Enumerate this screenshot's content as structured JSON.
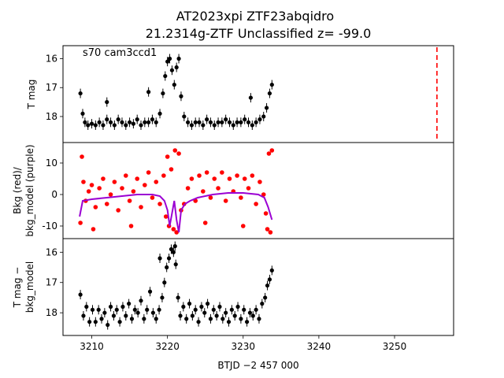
{
  "chart_data": {
    "type": "scatter",
    "title_line1": "AT2023xpi  ZTF23abqidro",
    "title_line2": "21.2314g-ZTF Unclassified z= -99.0",
    "annotation": "s70 cam3ccd1",
    "xlabel": "BTJD −2 457 000",
    "xlim": [
      3206.2,
      3257.8
    ],
    "xticks": [
      3210,
      3220,
      3230,
      3240,
      3250
    ],
    "panels": [
      {
        "name": "tmag",
        "ylabel": [
          "T mag"
        ],
        "ylim": [
          18.9,
          15.55
        ],
        "yticks": [
          16,
          17,
          18
        ],
        "series": [
          {
            "name": "",
            "kind": "errorbar",
            "color": "#000000",
            "points": [
              [
                3208.5,
                17.2
              ],
              [
                3208.8,
                17.9
              ],
              [
                3209.1,
                18.2
              ],
              [
                3209.5,
                18.3
              ],
              [
                3210.0,
                18.25
              ],
              [
                3210.5,
                18.3
              ],
              [
                3211.0,
                18.2
              ],
              [
                3211.5,
                18.3
              ],
              [
                3212.0,
                18.1
              ],
              [
                3212.5,
                18.2
              ],
              [
                3213.0,
                18.3
              ],
              [
                3213.5,
                18.1
              ],
              [
                3214.0,
                18.2
              ],
              [
                3214.5,
                18.3
              ],
              [
                3215.0,
                18.2
              ],
              [
                3215.5,
                18.25
              ],
              [
                3216.0,
                18.1
              ],
              [
                3216.5,
                18.3
              ],
              [
                3217.0,
                18.2
              ],
              [
                3217.5,
                18.2
              ],
              [
                3218.0,
                18.1
              ],
              [
                3218.5,
                18.2
              ],
              [
                3219.0,
                17.9
              ],
              [
                3219.4,
                17.2
              ],
              [
                3219.7,
                16.6
              ],
              [
                3220.0,
                16.1
              ],
              [
                3220.3,
                16.0
              ],
              [
                3220.6,
                16.4
              ],
              [
                3220.9,
                16.9
              ],
              [
                3221.2,
                16.3
              ],
              [
                3221.5,
                16.0
              ],
              [
                3221.8,
                17.3
              ],
              [
                3222.2,
                18.0
              ],
              [
                3222.7,
                18.2
              ],
              [
                3223.2,
                18.3
              ],
              [
                3223.7,
                18.2
              ],
              [
                3224.2,
                18.2
              ],
              [
                3224.7,
                18.3
              ],
              [
                3225.2,
                18.1
              ],
              [
                3225.7,
                18.2
              ],
              [
                3226.2,
                18.3
              ],
              [
                3226.7,
                18.2
              ],
              [
                3227.2,
                18.2
              ],
              [
                3227.7,
                18.1
              ],
              [
                3228.2,
                18.2
              ],
              [
                3228.7,
                18.3
              ],
              [
                3229.2,
                18.2
              ],
              [
                3229.7,
                18.2
              ],
              [
                3230.2,
                18.1
              ],
              [
                3230.7,
                18.2
              ],
              [
                3231.2,
                18.3
              ],
              [
                3231.7,
                18.2
              ],
              [
                3232.2,
                18.1
              ],
              [
                3232.7,
                18.0
              ],
              [
                3233.1,
                17.7
              ],
              [
                3233.5,
                17.2
              ],
              [
                3233.8,
                16.9
              ],
              [
                3217.5,
                17.15
              ],
              [
                3212.0,
                17.5
              ],
              [
                3231.0,
                17.35
              ]
            ]
          },
          {
            "name": "",
            "kind": "vline",
            "color": "#ff0000",
            "x": 3255.6
          }
        ]
      },
      {
        "name": "bkg",
        "ylabel": [
          "Bkg (red)/",
          "bkg_model (purple)"
        ],
        "ylim": [
          -14,
          16.5
        ],
        "yticks": [
          -10,
          0,
          10
        ],
        "series": [
          {
            "name": "Bkg",
            "kind": "scatter",
            "color": "#ff0000",
            "points": [
              [
                3208.5,
                -9
              ],
              [
                3208.7,
                12
              ],
              [
                3208.9,
                4
              ],
              [
                3209.2,
                -2
              ],
              [
                3209.6,
                1
              ],
              [
                3210.0,
                3
              ],
              [
                3210.5,
                -4
              ],
              [
                3211.0,
                2
              ],
              [
                3211.5,
                5
              ],
              [
                3212.0,
                -3
              ],
              [
                3212.5,
                0
              ],
              [
                3213.0,
                4
              ],
              [
                3213.5,
                -5
              ],
              [
                3214.0,
                2
              ],
              [
                3214.5,
                6
              ],
              [
                3215.0,
                -2
              ],
              [
                3215.5,
                1
              ],
              [
                3216.0,
                5
              ],
              [
                3216.5,
                -4
              ],
              [
                3217.0,
                3
              ],
              [
                3217.5,
                7
              ],
              [
                3218.0,
                -1
              ],
              [
                3218.5,
                4
              ],
              [
                3219.0,
                -3
              ],
              [
                3219.5,
                6
              ],
              [
                3219.8,
                -7
              ],
              [
                3220.0,
                12
              ],
              [
                3220.2,
                -10
              ],
              [
                3220.5,
                8
              ],
              [
                3220.8,
                -11
              ],
              [
                3221.0,
                14
              ],
              [
                3221.2,
                -12
              ],
              [
                3221.5,
                13
              ],
              [
                3221.8,
                -5
              ],
              [
                3222.2,
                -3
              ],
              [
                3222.7,
                2
              ],
              [
                3223.2,
                5
              ],
              [
                3223.7,
                -2
              ],
              [
                3224.2,
                6
              ],
              [
                3224.7,
                1
              ],
              [
                3225.2,
                7
              ],
              [
                3225.7,
                -1
              ],
              [
                3226.2,
                5
              ],
              [
                3226.7,
                2
              ],
              [
                3227.2,
                7
              ],
              [
                3227.7,
                -2
              ],
              [
                3228.2,
                5
              ],
              [
                3228.7,
                1
              ],
              [
                3229.2,
                6
              ],
              [
                3229.7,
                -1
              ],
              [
                3230.2,
                5
              ],
              [
                3230.7,
                2
              ],
              [
                3231.2,
                6
              ],
              [
                3231.7,
                -3
              ],
              [
                3232.2,
                4
              ],
              [
                3232.7,
                0
              ],
              [
                3233.0,
                -6
              ],
              [
                3233.2,
                -11
              ],
              [
                3233.4,
                13
              ],
              [
                3233.6,
                -12
              ],
              [
                3233.8,
                14
              ],
              [
                3210.2,
                -11
              ],
              [
                3215.2,
                -10
              ],
              [
                3225.0,
                -9
              ],
              [
                3230.0,
                -10
              ]
            ]
          },
          {
            "name": "bkg_model",
            "kind": "line",
            "color": "#9b00d3",
            "points": [
              [
                3208.4,
                -7
              ],
              [
                3208.8,
                -2
              ],
              [
                3210.0,
                -1.5
              ],
              [
                3212.0,
                -1
              ],
              [
                3214.0,
                -0.5
              ],
              [
                3216.0,
                0
              ],
              [
                3218.0,
                0
              ],
              [
                3219.0,
                -0.5
              ],
              [
                3219.6,
                -2
              ],
              [
                3220.0,
                -5
              ],
              [
                3220.3,
                -10
              ],
              [
                3220.6,
                -6
              ],
              [
                3220.9,
                -2
              ],
              [
                3221.2,
                -8
              ],
              [
                3221.5,
                -12
              ],
              [
                3221.8,
                -5
              ],
              [
                3222.3,
                -3
              ],
              [
                3223.0,
                -2
              ],
              [
                3224.0,
                -1
              ],
              [
                3226.0,
                0
              ],
              [
                3228.0,
                0.5
              ],
              [
                3230.0,
                0.5
              ],
              [
                3232.0,
                0
              ],
              [
                3232.8,
                -1
              ],
              [
                3233.3,
                -4
              ],
              [
                3233.8,
                -8
              ]
            ]
          }
        ]
      },
      {
        "name": "diff",
        "ylabel": [
          "T mag −",
          "bkg_model"
        ],
        "ylim": [
          18.75,
          15.55
        ],
        "yticks": [
          16,
          17,
          18
        ],
        "series": [
          {
            "name": "",
            "kind": "errorbar",
            "color": "#000000",
            "points": [
              [
                3208.5,
                17.4
              ],
              [
                3208.9,
                18.1
              ],
              [
                3209.3,
                17.8
              ],
              [
                3209.7,
                18.3
              ],
              [
                3210.1,
                17.9
              ],
              [
                3210.5,
                18.3
              ],
              [
                3210.9,
                17.9
              ],
              [
                3211.3,
                18.2
              ],
              [
                3211.7,
                18.0
              ],
              [
                3212.1,
                18.4
              ],
              [
                3212.5,
                17.8
              ],
              [
                3212.9,
                18.1
              ],
              [
                3213.3,
                17.9
              ],
              [
                3213.7,
                18.3
              ],
              [
                3214.1,
                17.8
              ],
              [
                3214.5,
                18.1
              ],
              [
                3214.9,
                17.7
              ],
              [
                3215.3,
                18.2
              ],
              [
                3215.7,
                17.9
              ],
              [
                3216.1,
                18.0
              ],
              [
                3216.5,
                17.6
              ],
              [
                3216.9,
                18.2
              ],
              [
                3217.3,
                17.9
              ],
              [
                3217.7,
                17.3
              ],
              [
                3218.1,
                18.0
              ],
              [
                3218.5,
                18.2
              ],
              [
                3218.9,
                17.9
              ],
              [
                3219.3,
                17.5
              ],
              [
                3219.6,
                17.0
              ],
              [
                3219.9,
                16.5
              ],
              [
                3220.2,
                16.2
              ],
              [
                3220.5,
                15.9
              ],
              [
                3220.8,
                16.0
              ],
              [
                3221.1,
                16.4
              ],
              [
                3221.4,
                17.5
              ],
              [
                3221.7,
                18.1
              ],
              [
                3222.1,
                17.8
              ],
              [
                3222.5,
                18.2
              ],
              [
                3222.9,
                17.7
              ],
              [
                3223.3,
                18.1
              ],
              [
                3223.7,
                17.9
              ],
              [
                3224.1,
                18.3
              ],
              [
                3224.5,
                17.8
              ],
              [
                3224.9,
                18.0
              ],
              [
                3225.3,
                17.7
              ],
              [
                3225.7,
                18.2
              ],
              [
                3226.1,
                17.9
              ],
              [
                3226.5,
                18.1
              ],
              [
                3226.9,
                17.8
              ],
              [
                3227.3,
                18.2
              ],
              [
                3227.7,
                18.0
              ],
              [
                3228.1,
                18.3
              ],
              [
                3228.5,
                17.9
              ],
              [
                3228.9,
                18.1
              ],
              [
                3229.3,
                17.8
              ],
              [
                3229.7,
                18.2
              ],
              [
                3230.1,
                17.9
              ],
              [
                3230.5,
                18.3
              ],
              [
                3230.9,
                18.0
              ],
              [
                3231.3,
                18.1
              ],
              [
                3231.7,
                17.9
              ],
              [
                3232.1,
                18.2
              ],
              [
                3232.5,
                17.7
              ],
              [
                3232.9,
                17.5
              ],
              [
                3233.2,
                17.1
              ],
              [
                3233.5,
                16.9
              ],
              [
                3233.8,
                16.6
              ],
              [
                3219.0,
                16.2
              ],
              [
                3221.0,
                15.8
              ]
            ]
          }
        ]
      }
    ],
    "grid": false,
    "legend": "none"
  }
}
